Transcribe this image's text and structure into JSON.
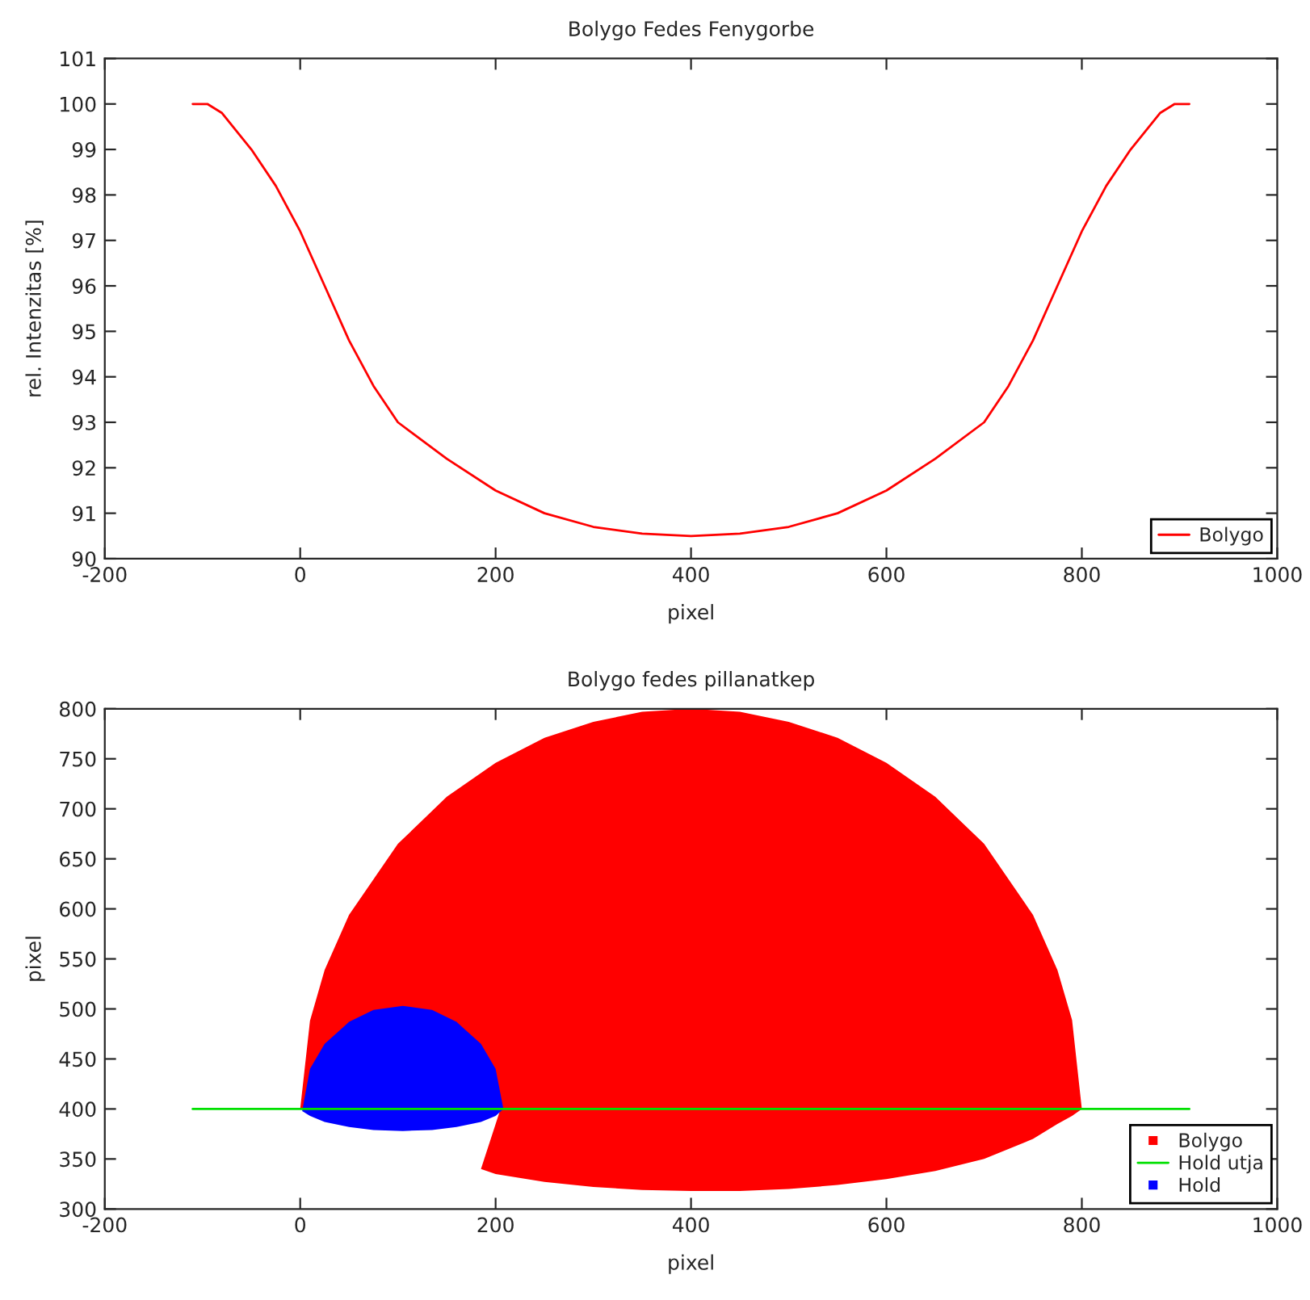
{
  "chart_data": [
    {
      "type": "line",
      "title": "Bolygo Fedes Fenygorbe",
      "xlabel": "pixel",
      "ylabel": "rel. Intenzitas [%]",
      "xlim": [
        -200,
        1000
      ],
      "xticks": [
        -200,
        0,
        200,
        400,
        600,
        800,
        1000
      ],
      "ylim": [
        90,
        101
      ],
      "yticks": [
        90,
        91,
        92,
        93,
        94,
        95,
        96,
        97,
        98,
        99,
        100,
        101
      ],
      "legend": "bottom right",
      "grid": false,
      "series": [
        {
          "name": "Bolygo",
          "color": "#ff0000",
          "x": [
            -110,
            -95,
            -80,
            -50,
            -25,
            0,
            25,
            50,
            75,
            100,
            150,
            200,
            250,
            300,
            350,
            400,
            450,
            500,
            550,
            600,
            650,
            700,
            725,
            750,
            775,
            800,
            825,
            850,
            880,
            895,
            910
          ],
          "values": [
            100,
            100,
            99.8,
            99.0,
            98.2,
            97.2,
            96.0,
            94.8,
            93.8,
            93.0,
            92.2,
            91.5,
            91.0,
            90.7,
            90.55,
            90.5,
            90.55,
            90.7,
            91.0,
            91.5,
            92.2,
            93.0,
            93.8,
            94.8,
            96.0,
            97.2,
            98.2,
            99.0,
            99.8,
            100,
            100
          ]
        }
      ]
    },
    {
      "type": "area",
      "title": "Bolygo fedes pillanatkep",
      "xlabel": "pixel",
      "ylabel": "pixel",
      "xlim": [
        -200,
        1000
      ],
      "xticks": [
        -200,
        0,
        200,
        400,
        600,
        800,
        1000
      ],
      "ylim": [
        300,
        800
      ],
      "yticks": [
        300,
        350,
        400,
        450,
        500,
        550,
        600,
        650,
        700,
        750,
        800
      ],
      "legend": "bottom right",
      "grid": false,
      "series": [
        {
          "name": "Bolygo",
          "color": "#ff0000",
          "x": [
            0,
            10,
            25,
            50,
            100,
            150,
            200,
            250,
            300,
            350,
            400,
            450,
            500,
            550,
            600,
            650,
            700,
            750,
            775,
            790,
            800,
            790,
            775,
            750,
            700,
            650,
            600,
            550,
            500,
            450,
            400,
            350,
            300,
            250,
            200,
            185,
            205
          ],
          "values": [
            400,
            488,
            539,
            594,
            665,
            712,
            746,
            771,
            787,
            797,
            800,
            797,
            787,
            771,
            746,
            712,
            665,
            594,
            539,
            489,
            400,
            393,
            385,
            370,
            350,
            338,
            330,
            324,
            320,
            318,
            318,
            319,
            322,
            327,
            335,
            340,
            400
          ]
        },
        {
          "name": "Hold utja",
          "type": "line",
          "color": "#00e000",
          "x": [
            -110,
            910
          ],
          "values": [
            400,
            400
          ]
        },
        {
          "name": "Hold",
          "color": "#0000ff",
          "x": [
            2,
            10,
            25,
            50,
            75,
            105,
            135,
            160,
            185,
            200,
            208,
            200,
            185,
            160,
            135,
            105,
            75,
            50,
            25,
            10
          ],
          "values": [
            398,
            440,
            465,
            487,
            499,
            503,
            499,
            487,
            465,
            440,
            400,
            393,
            387,
            382,
            379,
            378,
            379,
            382,
            387,
            393
          ]
        }
      ]
    }
  ]
}
